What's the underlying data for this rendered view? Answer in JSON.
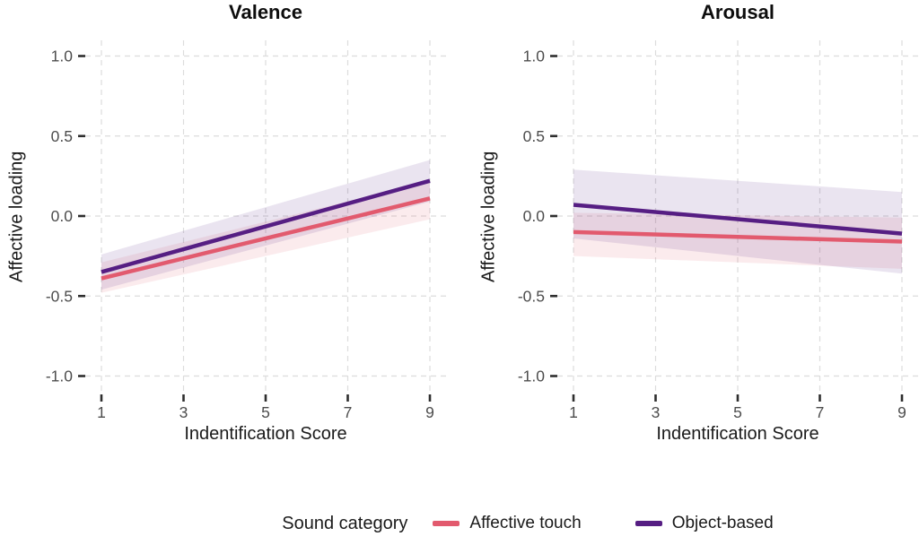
{
  "chart_data": [
    {
      "type": "line",
      "title": "Valence",
      "xlabel": "Indentification Score",
      "ylabel": "Affective loading",
      "x": [
        1,
        9
      ],
      "xtick_values": [
        1,
        3,
        5,
        7,
        9
      ],
      "xtick_labels": [
        "1",
        "3",
        "5",
        "7",
        "9"
      ],
      "ytick_values": [
        -1.0,
        -0.5,
        0.0,
        0.5,
        1.0
      ],
      "ytick_labels": [
        "-1.0",
        "-0.5",
        "0.0",
        "0.5",
        "1.0"
      ],
      "xlim": [
        0.6,
        9.4
      ],
      "ylim": [
        -1.1,
        1.1
      ],
      "grid": "dashed",
      "legend_position": "bottom",
      "series": [
        {
          "name": "Affective touch",
          "color": "#E25A6E",
          "y": [
            -0.39,
            0.11
          ],
          "ci_upper": [
            -0.29,
            0.22
          ],
          "ci_lower": [
            -0.48,
            -0.02
          ]
        },
        {
          "name": "Object-based",
          "color": "#561E83",
          "y": [
            -0.35,
            0.22
          ],
          "ci_upper": [
            -0.24,
            0.35
          ],
          "ci_lower": [
            -0.46,
            0.09
          ]
        }
      ]
    },
    {
      "type": "line",
      "title": "Arousal",
      "xlabel": "Indentification Score",
      "ylabel": "Affective loading",
      "x": [
        1,
        9
      ],
      "xtick_values": [
        1,
        3,
        5,
        7,
        9
      ],
      "xtick_labels": [
        "1",
        "3",
        "5",
        "7",
        "9"
      ],
      "ytick_values": [
        -1.0,
        -0.5,
        0.0,
        0.5,
        1.0
      ],
      "ytick_labels": [
        "-1.0",
        "-0.5",
        "0.0",
        "0.5",
        "1.0"
      ],
      "xlim": [
        0.6,
        9.4
      ],
      "ylim": [
        -1.1,
        1.1
      ],
      "grid": "dashed",
      "legend_position": "bottom",
      "series": [
        {
          "name": "Affective touch",
          "color": "#E25A6E",
          "y": [
            -0.1,
            -0.16
          ],
          "ci_upper": [
            0.02,
            -0.01
          ],
          "ci_lower": [
            -0.25,
            -0.33
          ]
        },
        {
          "name": "Object-based",
          "color": "#561E83",
          "y": [
            0.07,
            -0.11
          ],
          "ci_upper": [
            0.29,
            0.15
          ],
          "ci_lower": [
            -0.14,
            -0.36
          ]
        }
      ]
    }
  ],
  "legend": {
    "title": "Sound category",
    "items": [
      {
        "label": "Affective touch",
        "color": "#E25A6E"
      },
      {
        "label": "Object-based",
        "color": "#561E83"
      }
    ]
  },
  "style": {
    "background": "#ffffff",
    "grid_color": "#dcdcdc",
    "tick_color": "#2e2e2e",
    "tick_label_color": "#4d4d4d",
    "band_opacity": "0.12"
  }
}
